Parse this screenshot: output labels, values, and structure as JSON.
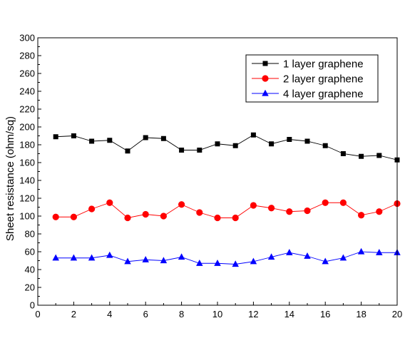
{
  "chart_data": {
    "type": "line",
    "title": "",
    "xlabel": "",
    "ylabel": "Sheet resistance (ohm/sq)",
    "xlim": [
      0,
      20
    ],
    "ylim": [
      0,
      300
    ],
    "x_ticks": [
      0,
      2,
      4,
      6,
      8,
      10,
      12,
      14,
      16,
      18,
      20
    ],
    "y_ticks": [
      0,
      20,
      40,
      60,
      80,
      100,
      120,
      140,
      160,
      180,
      200,
      220,
      240,
      260,
      280,
      300
    ],
    "grid": false,
    "legend_position": "top-right",
    "x": [
      1,
      2,
      3,
      4,
      5,
      6,
      7,
      8,
      9,
      10,
      11,
      12,
      13,
      14,
      15,
      16,
      17,
      18,
      19,
      20
    ],
    "series": [
      {
        "name": "1 layer graphene",
        "marker": "square",
        "color": "#000000",
        "values": [
          189,
          190,
          184,
          185,
          173,
          188,
          187,
          174,
          174,
          181,
          179,
          191,
          181,
          186,
          184,
          179,
          170,
          167,
          168,
          163
        ]
      },
      {
        "name": "2 layer graphene",
        "marker": "circle",
        "color": "#ff0000",
        "values": [
          99,
          99,
          108,
          115,
          98,
          102,
          100,
          113,
          104,
          98,
          98,
          112,
          109,
          105,
          106,
          115,
          115,
          101,
          105,
          114
        ]
      },
      {
        "name": "4 layer graphene",
        "marker": "triangle",
        "color": "#0000ff",
        "values": [
          53,
          53,
          53,
          56,
          49,
          51,
          50,
          54,
          47,
          47,
          46,
          49,
          54,
          59,
          55,
          49,
          53,
          60,
          59,
          59
        ]
      }
    ]
  }
}
